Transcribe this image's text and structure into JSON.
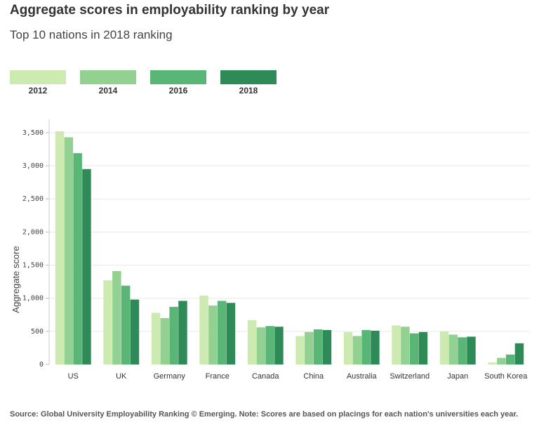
{
  "chart_data": {
    "type": "bar",
    "title": "Aggregate scores in employability ranking by year",
    "subtitle": "Top 10 nations in 2018 ranking",
    "xlabel": "",
    "ylabel": "Aggregate score",
    "ylim": [
      0,
      3700
    ],
    "yticks": [
      0,
      500,
      1000,
      1500,
      2000,
      2500,
      3000,
      3500
    ],
    "ytick_labels": [
      "0",
      "500",
      "1,000",
      "1,500",
      "2,000",
      "2,500",
      "3,000",
      "3,500"
    ],
    "categories": [
      "US",
      "UK",
      "Germany",
      "France",
      "Canada",
      "China",
      "Australia",
      "Switzerland",
      "Japan",
      "South Korea"
    ],
    "series": [
      {
        "name": "2012",
        "color": "#cdeab0",
        "values": [
          3520,
          1270,
          780,
          1040,
          670,
          430,
          490,
          590,
          500,
          30
        ]
      },
      {
        "name": "2014",
        "color": "#93d192",
        "values": [
          3430,
          1410,
          700,
          890,
          560,
          490,
          430,
          570,
          450,
          100
        ]
      },
      {
        "name": "2016",
        "color": "#5ab676",
        "values": [
          3190,
          1190,
          870,
          960,
          580,
          530,
          520,
          470,
          410,
          150
        ]
      },
      {
        "name": "2018",
        "color": "#2e8b57",
        "values": [
          2950,
          980,
          960,
          930,
          570,
          520,
          510,
          490,
          420,
          320
        ]
      }
    ],
    "grid": true,
    "legend_position": "top-left"
  },
  "source": "Source: Global University Employability Ranking © Emerging. Note: Scores are based on placings for each nation's universities each year."
}
